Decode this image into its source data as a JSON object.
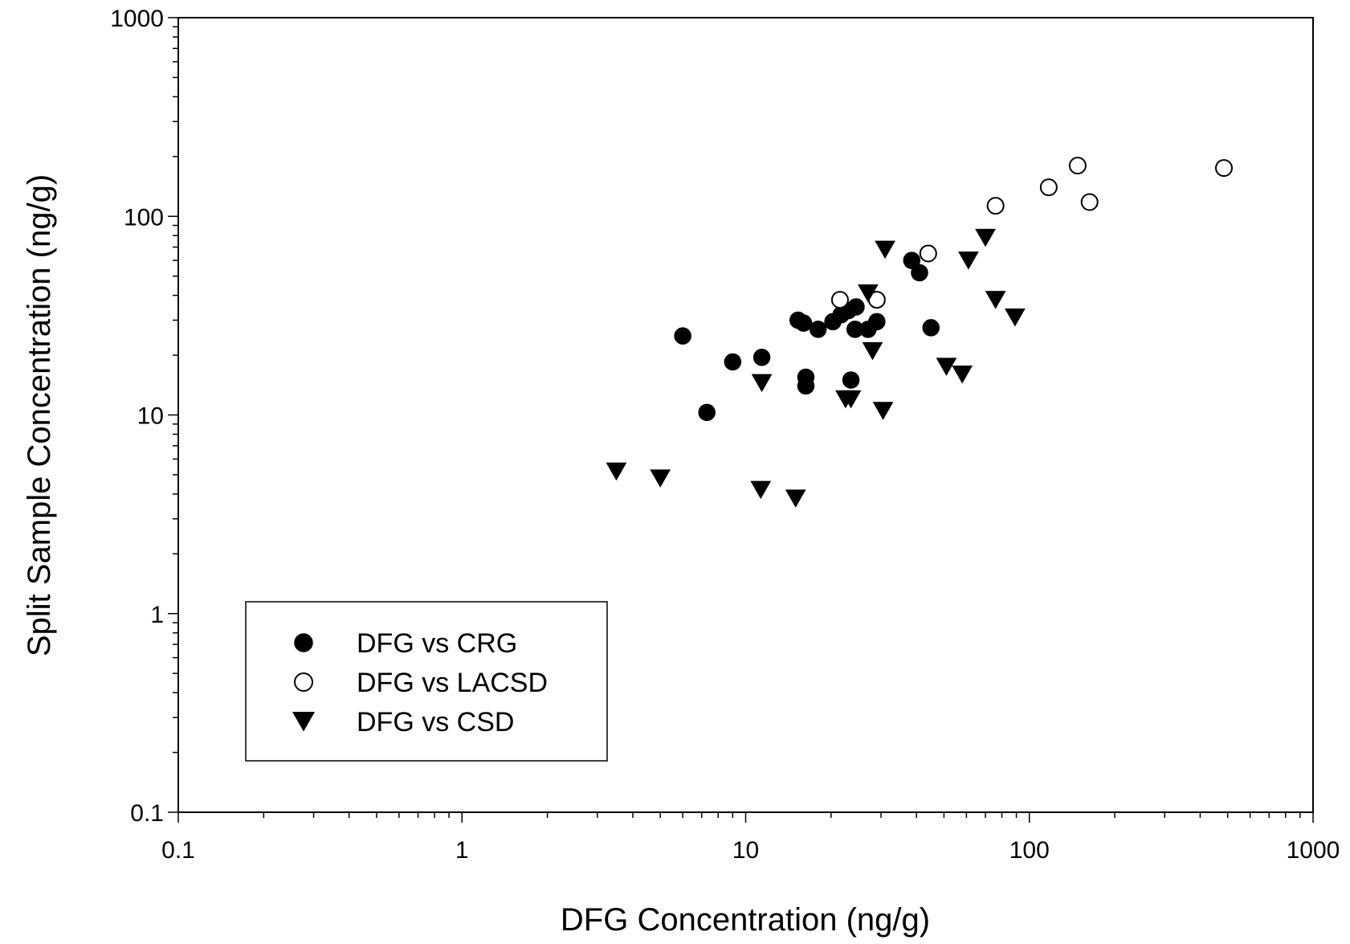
{
  "chart_data": {
    "type": "scatter",
    "xlabel": "DFG Concentration (ng/g)",
    "ylabel": "Split Sample Concentration (ng/g)",
    "xscale": "log",
    "yscale": "log",
    "xlim": [
      0.1,
      1000
    ],
    "ylim": [
      0.1,
      1000
    ],
    "x_ticks": [
      "0.1",
      "1",
      "10",
      "100",
      "1000"
    ],
    "y_ticks": [
      "0.1",
      "1",
      "10",
      "100",
      "1000"
    ],
    "grid": false,
    "legend_position": "bottom-left",
    "series": [
      {
        "name": "DFG vs CRG",
        "marker": "filled-circle",
        "color": "#000000",
        "points": [
          [
            6.0,
            25
          ],
          [
            7.3,
            10.3
          ],
          [
            9.0,
            18.5
          ],
          [
            11.4,
            19.5
          ],
          [
            15.3,
            30
          ],
          [
            16.0,
            29
          ],
          [
            16.3,
            15.5
          ],
          [
            16.3,
            14
          ],
          [
            18.0,
            27
          ],
          [
            20.3,
            29.5
          ],
          [
            21.7,
            32
          ],
          [
            23.0,
            33.5
          ],
          [
            23.5,
            15
          ],
          [
            24.5,
            35
          ],
          [
            24.3,
            27
          ],
          [
            27.0,
            27
          ],
          [
            29.0,
            29.5
          ],
          [
            38.5,
            60
          ],
          [
            41.0,
            52
          ],
          [
            45.0,
            27.5
          ]
        ]
      },
      {
        "name": "DFG vs LACSD",
        "marker": "open-circle",
        "color": "#000000",
        "points": [
          [
            21.5,
            38
          ],
          [
            29.0,
            38
          ],
          [
            44.0,
            65
          ],
          [
            76.0,
            113
          ],
          [
            117,
            140
          ],
          [
            148,
            180
          ],
          [
            163,
            118
          ],
          [
            485,
            175
          ]
        ]
      },
      {
        "name": "DFG vs CSD",
        "marker": "filled-triangle-down",
        "color": "#000000",
        "points": [
          [
            3.5,
            5.2
          ],
          [
            5.0,
            4.8
          ],
          [
            11.4,
            14.5
          ],
          [
            11.3,
            4.2
          ],
          [
            15.0,
            3.8
          ],
          [
            22.5,
            12
          ],
          [
            23.5,
            12
          ],
          [
            27.0,
            41
          ],
          [
            28.0,
            21
          ],
          [
            30.5,
            10.5
          ],
          [
            31.0,
            68
          ],
          [
            51.0,
            17.5
          ],
          [
            58.0,
            16
          ],
          [
            61.0,
            60
          ],
          [
            70.0,
            78
          ],
          [
            76.0,
            38
          ],
          [
            89.0,
            31
          ]
        ]
      }
    ]
  }
}
